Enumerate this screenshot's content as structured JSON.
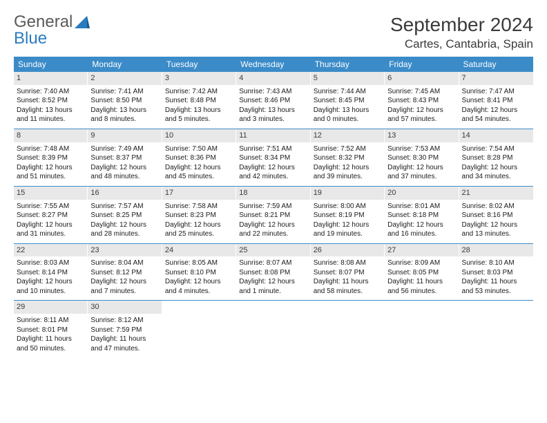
{
  "logo": {
    "word1": "General",
    "word2": "Blue"
  },
  "title": "September 2024",
  "location": "Cartes, Cantabria, Spain",
  "colors": {
    "header_bg": "#3b8bc8",
    "header_text": "#ffffff",
    "daynum_bg": "#e8e8e8",
    "divider": "#3b8bc8",
    "logo_gray": "#5a5a5a",
    "logo_blue": "#2a7bbf"
  },
  "day_names": [
    "Sunday",
    "Monday",
    "Tuesday",
    "Wednesday",
    "Thursday",
    "Friday",
    "Saturday"
  ],
  "weeks": [
    [
      {
        "n": "1",
        "sr": "Sunrise: 7:40 AM",
        "ss": "Sunset: 8:52 PM",
        "d1": "Daylight: 13 hours",
        "d2": "and 11 minutes."
      },
      {
        "n": "2",
        "sr": "Sunrise: 7:41 AM",
        "ss": "Sunset: 8:50 PM",
        "d1": "Daylight: 13 hours",
        "d2": "and 8 minutes."
      },
      {
        "n": "3",
        "sr": "Sunrise: 7:42 AM",
        "ss": "Sunset: 8:48 PM",
        "d1": "Daylight: 13 hours",
        "d2": "and 5 minutes."
      },
      {
        "n": "4",
        "sr": "Sunrise: 7:43 AM",
        "ss": "Sunset: 8:46 PM",
        "d1": "Daylight: 13 hours",
        "d2": "and 3 minutes."
      },
      {
        "n": "5",
        "sr": "Sunrise: 7:44 AM",
        "ss": "Sunset: 8:45 PM",
        "d1": "Daylight: 13 hours",
        "d2": "and 0 minutes."
      },
      {
        "n": "6",
        "sr": "Sunrise: 7:45 AM",
        "ss": "Sunset: 8:43 PM",
        "d1": "Daylight: 12 hours",
        "d2": "and 57 minutes."
      },
      {
        "n": "7",
        "sr": "Sunrise: 7:47 AM",
        "ss": "Sunset: 8:41 PM",
        "d1": "Daylight: 12 hours",
        "d2": "and 54 minutes."
      }
    ],
    [
      {
        "n": "8",
        "sr": "Sunrise: 7:48 AM",
        "ss": "Sunset: 8:39 PM",
        "d1": "Daylight: 12 hours",
        "d2": "and 51 minutes."
      },
      {
        "n": "9",
        "sr": "Sunrise: 7:49 AM",
        "ss": "Sunset: 8:37 PM",
        "d1": "Daylight: 12 hours",
        "d2": "and 48 minutes."
      },
      {
        "n": "10",
        "sr": "Sunrise: 7:50 AM",
        "ss": "Sunset: 8:36 PM",
        "d1": "Daylight: 12 hours",
        "d2": "and 45 minutes."
      },
      {
        "n": "11",
        "sr": "Sunrise: 7:51 AM",
        "ss": "Sunset: 8:34 PM",
        "d1": "Daylight: 12 hours",
        "d2": "and 42 minutes."
      },
      {
        "n": "12",
        "sr": "Sunrise: 7:52 AM",
        "ss": "Sunset: 8:32 PM",
        "d1": "Daylight: 12 hours",
        "d2": "and 39 minutes."
      },
      {
        "n": "13",
        "sr": "Sunrise: 7:53 AM",
        "ss": "Sunset: 8:30 PM",
        "d1": "Daylight: 12 hours",
        "d2": "and 37 minutes."
      },
      {
        "n": "14",
        "sr": "Sunrise: 7:54 AM",
        "ss": "Sunset: 8:28 PM",
        "d1": "Daylight: 12 hours",
        "d2": "and 34 minutes."
      }
    ],
    [
      {
        "n": "15",
        "sr": "Sunrise: 7:55 AM",
        "ss": "Sunset: 8:27 PM",
        "d1": "Daylight: 12 hours",
        "d2": "and 31 minutes."
      },
      {
        "n": "16",
        "sr": "Sunrise: 7:57 AM",
        "ss": "Sunset: 8:25 PM",
        "d1": "Daylight: 12 hours",
        "d2": "and 28 minutes."
      },
      {
        "n": "17",
        "sr": "Sunrise: 7:58 AM",
        "ss": "Sunset: 8:23 PM",
        "d1": "Daylight: 12 hours",
        "d2": "and 25 minutes."
      },
      {
        "n": "18",
        "sr": "Sunrise: 7:59 AM",
        "ss": "Sunset: 8:21 PM",
        "d1": "Daylight: 12 hours",
        "d2": "and 22 minutes."
      },
      {
        "n": "19",
        "sr": "Sunrise: 8:00 AM",
        "ss": "Sunset: 8:19 PM",
        "d1": "Daylight: 12 hours",
        "d2": "and 19 minutes."
      },
      {
        "n": "20",
        "sr": "Sunrise: 8:01 AM",
        "ss": "Sunset: 8:18 PM",
        "d1": "Daylight: 12 hours",
        "d2": "and 16 minutes."
      },
      {
        "n": "21",
        "sr": "Sunrise: 8:02 AM",
        "ss": "Sunset: 8:16 PM",
        "d1": "Daylight: 12 hours",
        "d2": "and 13 minutes."
      }
    ],
    [
      {
        "n": "22",
        "sr": "Sunrise: 8:03 AM",
        "ss": "Sunset: 8:14 PM",
        "d1": "Daylight: 12 hours",
        "d2": "and 10 minutes."
      },
      {
        "n": "23",
        "sr": "Sunrise: 8:04 AM",
        "ss": "Sunset: 8:12 PM",
        "d1": "Daylight: 12 hours",
        "d2": "and 7 minutes."
      },
      {
        "n": "24",
        "sr": "Sunrise: 8:05 AM",
        "ss": "Sunset: 8:10 PM",
        "d1": "Daylight: 12 hours",
        "d2": "and 4 minutes."
      },
      {
        "n": "25",
        "sr": "Sunrise: 8:07 AM",
        "ss": "Sunset: 8:08 PM",
        "d1": "Daylight: 12 hours",
        "d2": "and 1 minute."
      },
      {
        "n": "26",
        "sr": "Sunrise: 8:08 AM",
        "ss": "Sunset: 8:07 PM",
        "d1": "Daylight: 11 hours",
        "d2": "and 58 minutes."
      },
      {
        "n": "27",
        "sr": "Sunrise: 8:09 AM",
        "ss": "Sunset: 8:05 PM",
        "d1": "Daylight: 11 hours",
        "d2": "and 56 minutes."
      },
      {
        "n": "28",
        "sr": "Sunrise: 8:10 AM",
        "ss": "Sunset: 8:03 PM",
        "d1": "Daylight: 11 hours",
        "d2": "and 53 minutes."
      }
    ],
    [
      {
        "n": "29",
        "sr": "Sunrise: 8:11 AM",
        "ss": "Sunset: 8:01 PM",
        "d1": "Daylight: 11 hours",
        "d2": "and 50 minutes."
      },
      {
        "n": "30",
        "sr": "Sunrise: 8:12 AM",
        "ss": "Sunset: 7:59 PM",
        "d1": "Daylight: 11 hours",
        "d2": "and 47 minutes."
      },
      null,
      null,
      null,
      null,
      null
    ]
  ]
}
